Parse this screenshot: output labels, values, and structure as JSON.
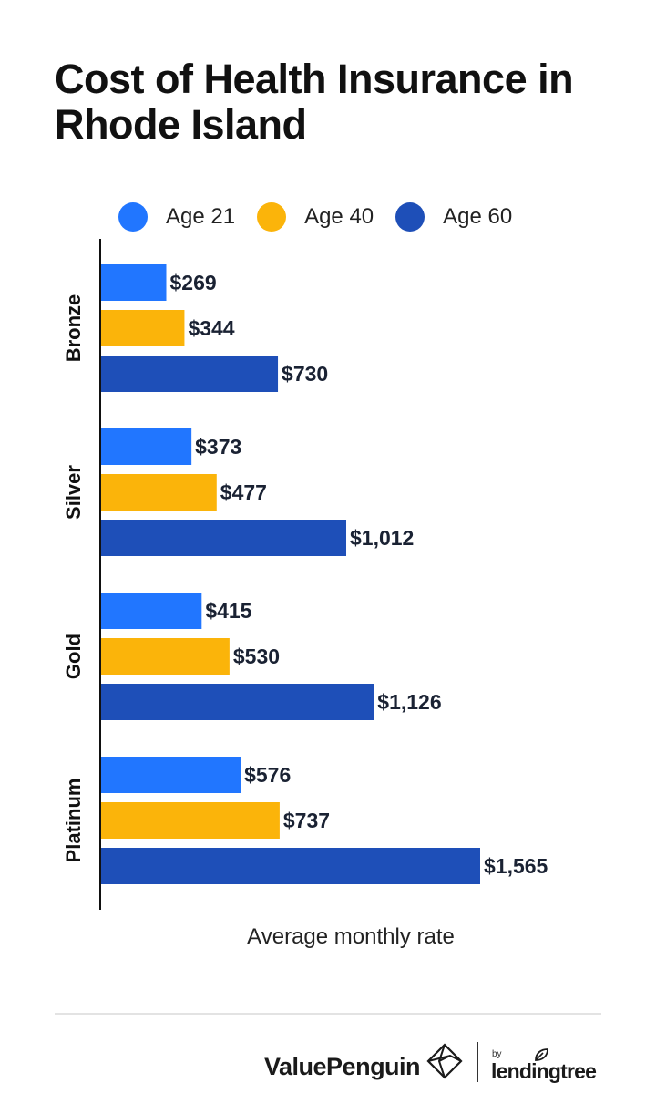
{
  "chart_data": {
    "type": "bar",
    "orientation": "horizontal",
    "title": "Cost of Health Insurance in Rhode Island",
    "xlabel": "Average monthly rate",
    "ylabel": "",
    "categories": [
      "Bronze",
      "Silver",
      "Gold",
      "Platinum"
    ],
    "series": [
      {
        "name": "Age 21",
        "color": "#2176ff",
        "values": [
          269,
          373,
          415,
          576
        ],
        "labels": [
          "$269",
          "$373",
          "$415",
          "$576"
        ]
      },
      {
        "name": "Age 40",
        "color": "#fbb40a",
        "values": [
          344,
          477,
          530,
          737
        ],
        "labels": [
          "$344",
          "$477",
          "$530",
          "$737"
        ]
      },
      {
        "name": "Age 60",
        "color": "#1e4fb8",
        "values": [
          730,
          1012,
          1126,
          1565
        ],
        "labels": [
          "$730",
          "$1,012",
          "$1,126",
          "$1,565"
        ]
      }
    ],
    "xlim": [
      0,
      1565
    ],
    "grid": false,
    "legend_position": "top"
  },
  "footer": {
    "brand_primary": "ValuePenguin",
    "brand_by": "by",
    "brand_secondary": "lendingtree",
    "primary_icon": "valuepenguin-logo-icon",
    "secondary_icon": "lendingtree-leaf-icon"
  }
}
